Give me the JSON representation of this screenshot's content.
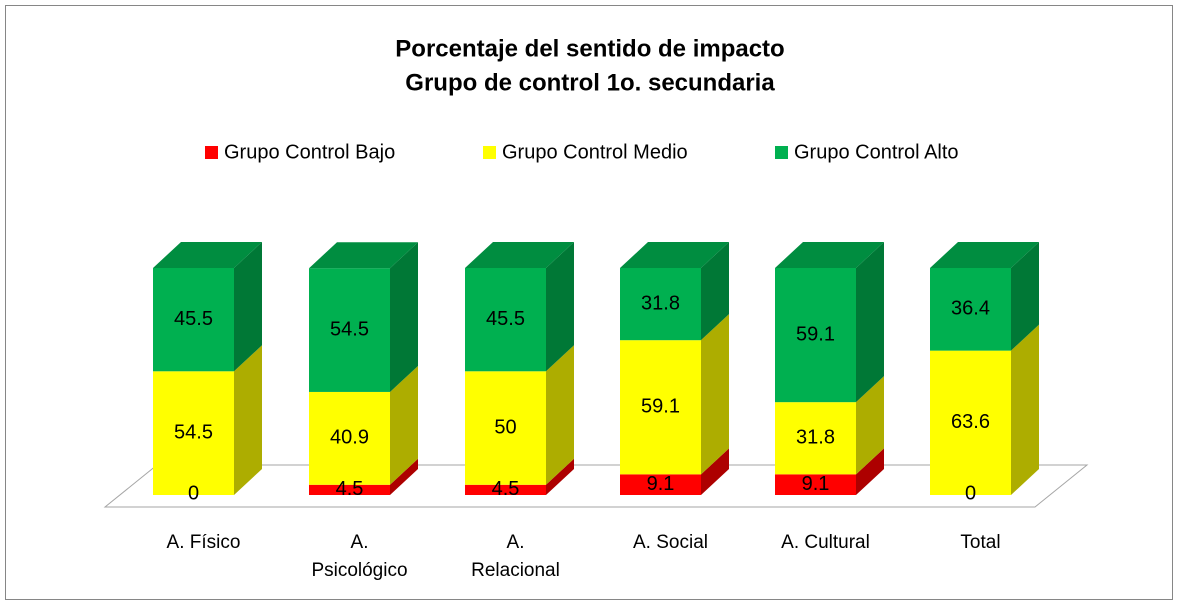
{
  "chart_data": {
    "type": "bar",
    "stacked": true,
    "three_d": true,
    "title": "Porcentaje del sentido de impacto",
    "subtitle": "Grupo de control 1o. secundaria",
    "categories": [
      "A. Físico",
      "A. Psicológico",
      "A. Relacional",
      "A. Social",
      "A. Cultural",
      "Total"
    ],
    "series": [
      {
        "name": "Grupo Control Bajo",
        "color": "#ff0000",
        "values": [
          0,
          4.5,
          4.5,
          9.1,
          9.1,
          0
        ]
      },
      {
        "name": "Grupo Control Medio",
        "color": "#ffff00",
        "values": [
          54.5,
          40.9,
          50,
          59.1,
          31.8,
          63.6
        ]
      },
      {
        "name": "Grupo Control Alto",
        "color": "#00b050",
        "values": [
          45.5,
          54.5,
          45.5,
          31.8,
          59.1,
          36.4
        ]
      }
    ],
    "legend": "top"
  }
}
